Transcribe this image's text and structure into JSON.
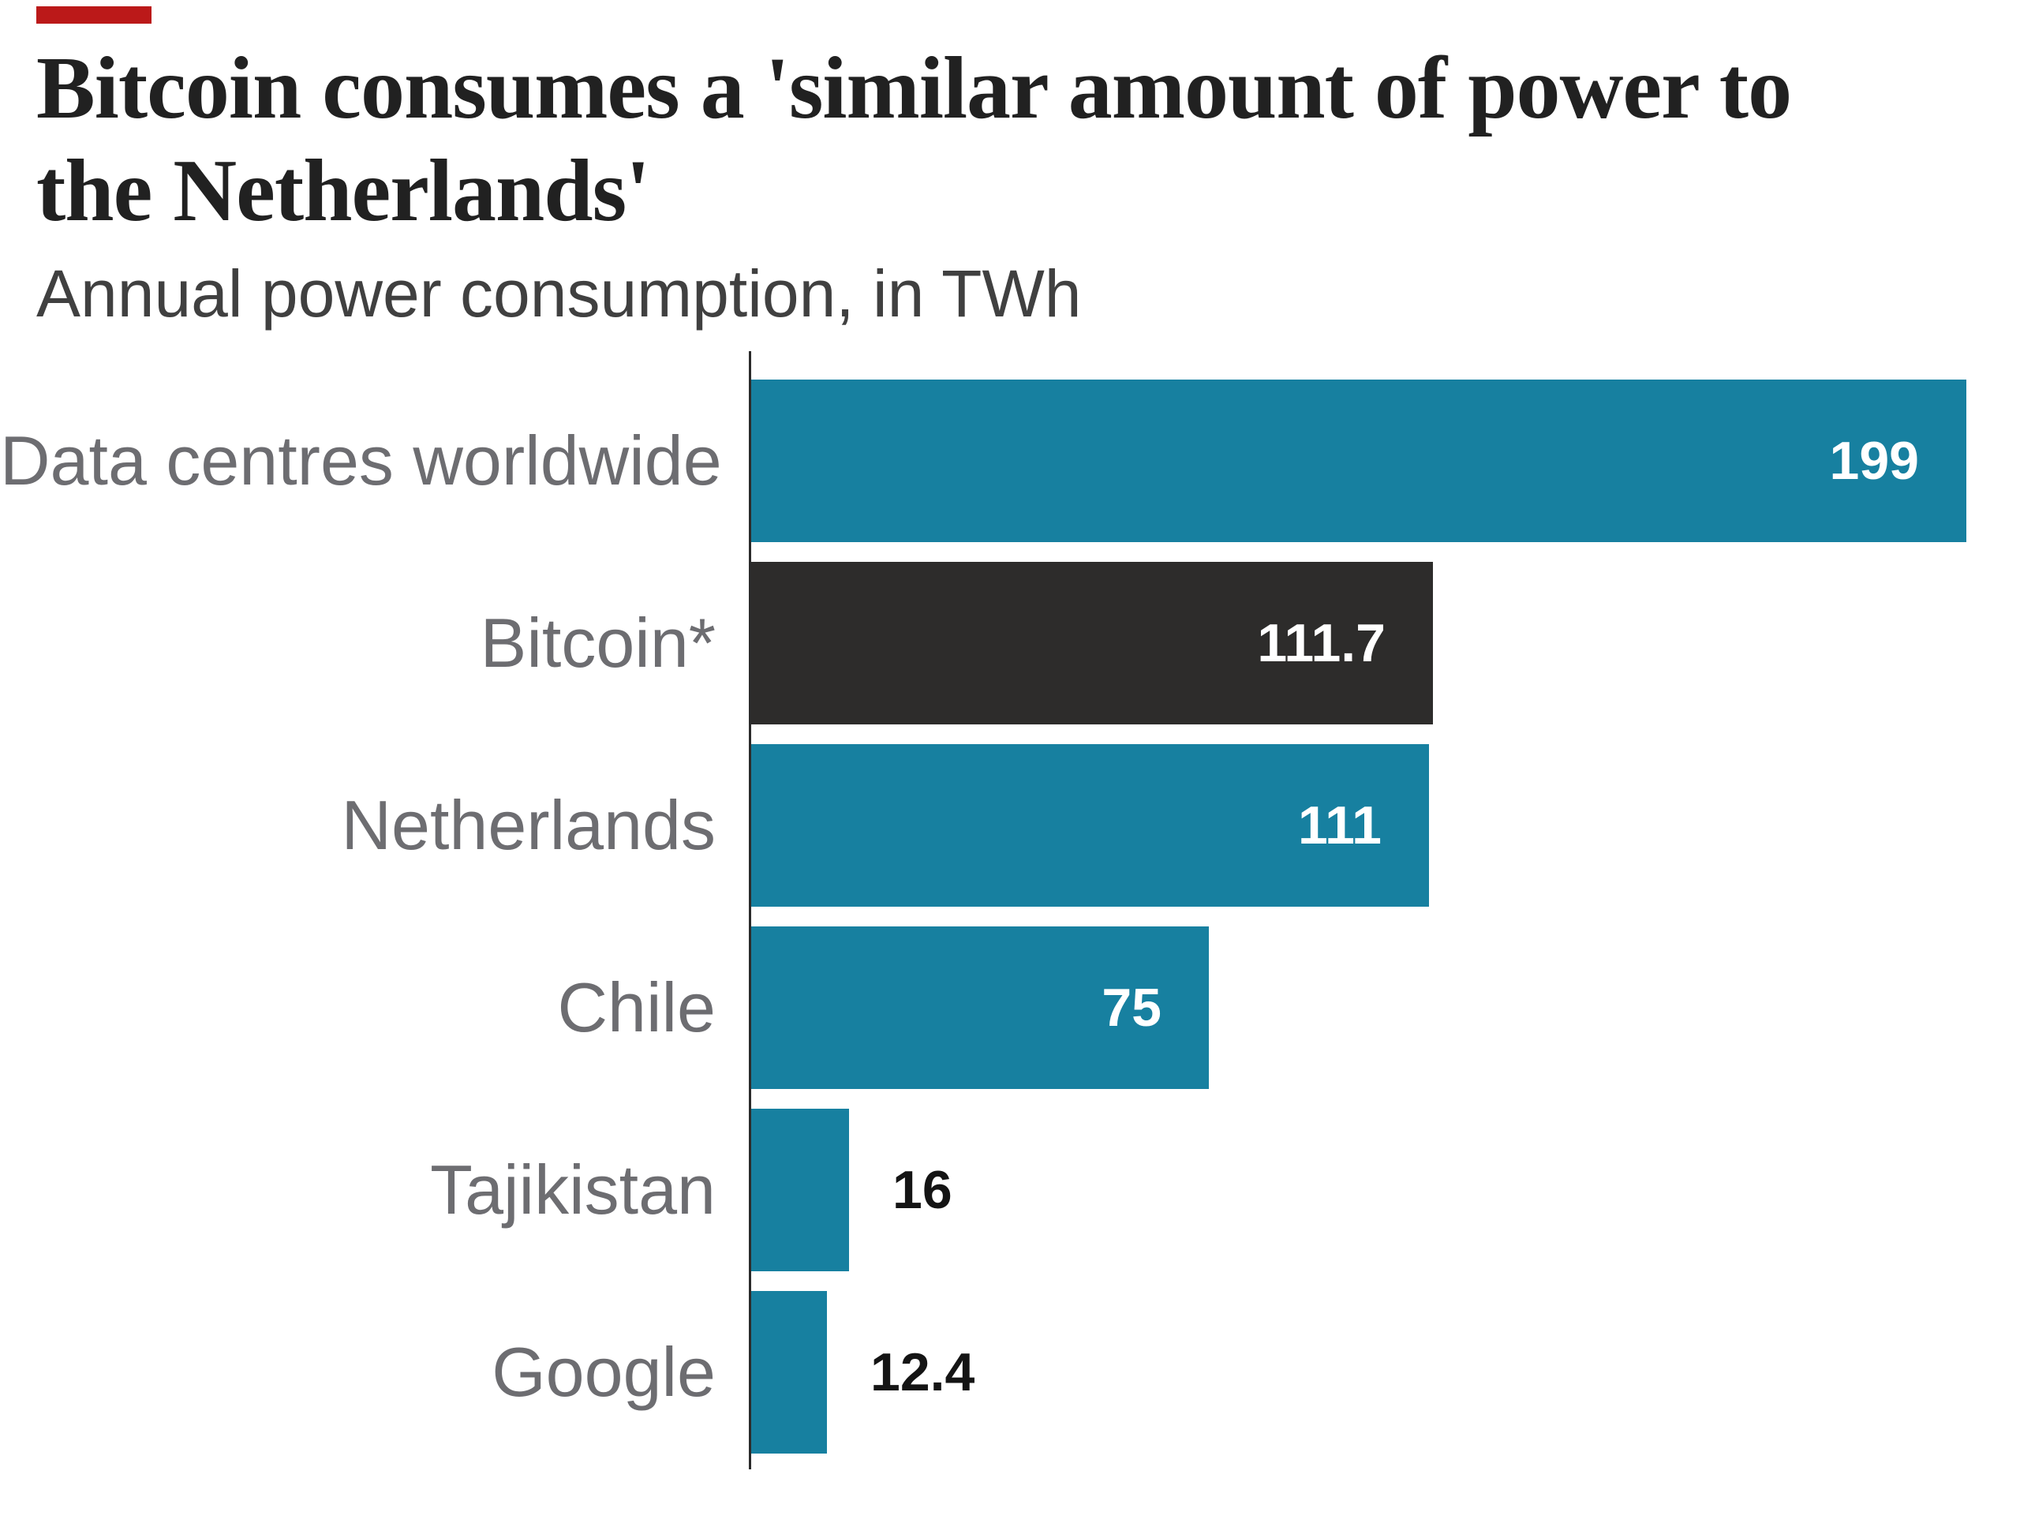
{
  "ident_color": "#bb1919",
  "header": {
    "title": "Bitcoin consumes a 'similar amount of power to the Netherlands'",
    "subtitle": "Annual power consumption, in TWh"
  },
  "chart_data": {
    "type": "bar",
    "orientation": "horizontal",
    "title": "Bitcoin consumes a 'similar amount of power to the Netherlands'",
    "subtitle": "Annual power consumption, in TWh",
    "xlabel": "",
    "ylabel": "",
    "unit": "TWh",
    "xlim": [
      0,
      199
    ],
    "grid": false,
    "legend": "none",
    "categories": [
      "Data centres worldwide",
      "Bitcoin*",
      "Netherlands",
      "Chile",
      "Tajikistan",
      "Google"
    ],
    "values": [
      199,
      111.7,
      111,
      75,
      16,
      12.4
    ],
    "rows": [
      {
        "label": "Data centres worldwide",
        "value": 199,
        "value_text": "199",
        "bar_color": "#1780a0",
        "value_label_position": "inside"
      },
      {
        "label": "Bitcoin*",
        "value": 111.7,
        "value_text": "111.7",
        "bar_color": "#2d2c2b",
        "value_label_position": "inside"
      },
      {
        "label": "Netherlands",
        "value": 111,
        "value_text": "111",
        "bar_color": "#1780a0",
        "value_label_position": "inside"
      },
      {
        "label": "Chile",
        "value": 75,
        "value_text": "75",
        "bar_color": "#1780a0",
        "value_label_position": "inside"
      },
      {
        "label": "Tajikistan",
        "value": 16,
        "value_text": "16",
        "bar_color": "#1780a0",
        "value_label_position": "outside"
      },
      {
        "label": "Google",
        "value": 12.4,
        "value_text": "12.4",
        "bar_color": "#1780a0",
        "value_label_position": "outside"
      }
    ],
    "colors": {
      "default_bar": "#1780a0",
      "highlight_bar": "#2d2c2b",
      "axis_line": "#2b2b2b",
      "category_label": "#6d6d71",
      "value_inside": "#ffffff",
      "value_outside": "#141414"
    }
  }
}
